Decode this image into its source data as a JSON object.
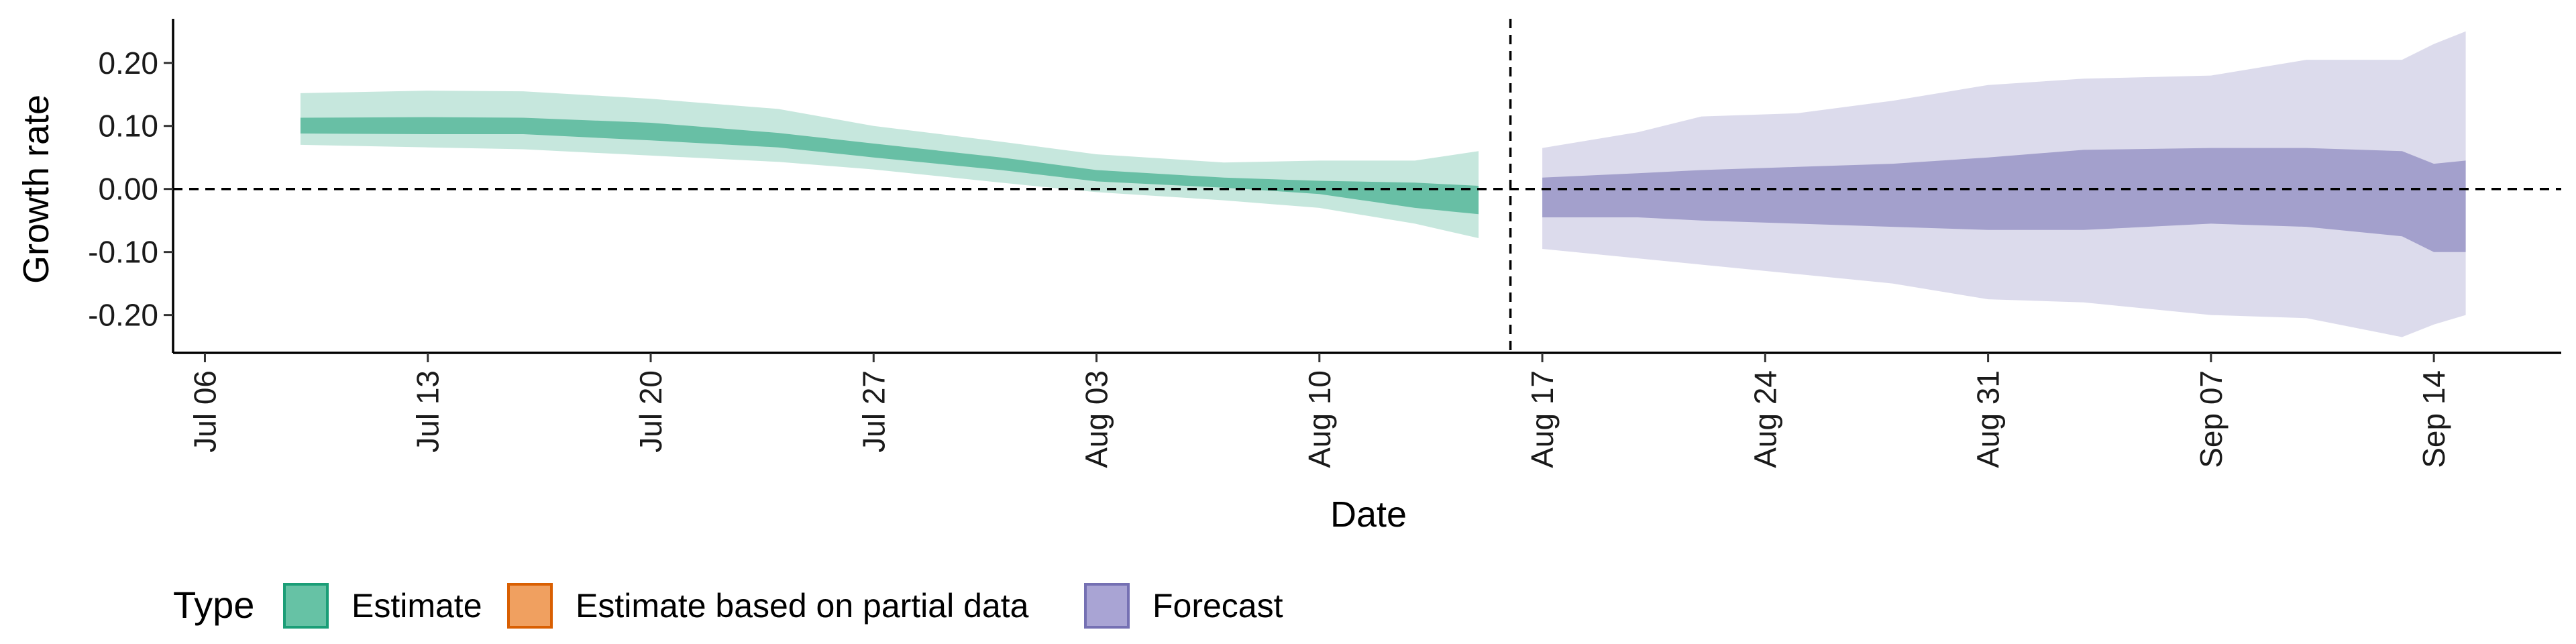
{
  "chart_data": {
    "type": "area",
    "xlabel": "Date",
    "ylabel": "Growth rate",
    "x_ticks": [
      "2020-07-06",
      "2020-07-13",
      "2020-07-20",
      "2020-07-27",
      "2020-08-03",
      "2020-08-10",
      "2020-08-17",
      "2020-08-24",
      "2020-08-31",
      "2020-09-07",
      "2020-09-14"
    ],
    "x_tick_labels": [
      "Jul 06",
      "Jul 13",
      "Jul 20",
      "Jul 27",
      "Aug 03",
      "Aug 10",
      "Aug 17",
      "Aug 24",
      "Aug 31",
      "Sep 07",
      "Sep 14"
    ],
    "xlim": [
      "2020-07-05",
      "2020-09-18"
    ],
    "y_ticks": [
      -0.2,
      -0.1,
      0.0,
      0.1,
      0.2
    ],
    "y_tick_labels": [
      "-0.20",
      "-0.10",
      "0.00",
      "0.10",
      "0.20"
    ],
    "ylim": [
      -0.26,
      0.27
    ],
    "hline": 0.0,
    "vline": "2020-08-16",
    "grid": false,
    "legend": {
      "title": "Type",
      "position": "bottom-left",
      "entries": [
        {
          "label": "Estimate",
          "fill": "#66c2a5",
          "stroke": "#1b9e77"
        },
        {
          "label": "Estimate based on partial data",
          "fill": "#f0a060",
          "stroke": "#d95f02"
        },
        {
          "label": "Forecast",
          "fill": "#a9a4d4",
          "stroke": "#7570b3"
        }
      ]
    },
    "series": [
      {
        "name": "Estimate",
        "color": "#1b9e77",
        "points": [
          {
            "x": "2020-07-09",
            "lo90": 0.07,
            "lo50": 0.088,
            "hi50": 0.113,
            "hi90": 0.152
          },
          {
            "x": "2020-07-13",
            "lo90": 0.066,
            "lo50": 0.087,
            "hi50": 0.114,
            "hi90": 0.156
          },
          {
            "x": "2020-07-16",
            "lo90": 0.063,
            "lo50": 0.087,
            "hi50": 0.113,
            "hi90": 0.155
          },
          {
            "x": "2020-07-20",
            "lo90": 0.053,
            "lo50": 0.077,
            "hi50": 0.105,
            "hi90": 0.143
          },
          {
            "x": "2020-07-24",
            "lo90": 0.043,
            "lo50": 0.066,
            "hi50": 0.089,
            "hi90": 0.127
          },
          {
            "x": "2020-07-27",
            "lo90": 0.031,
            "lo50": 0.05,
            "hi50": 0.072,
            "hi90": 0.1
          },
          {
            "x": "2020-07-31",
            "lo90": 0.01,
            "lo50": 0.03,
            "hi50": 0.05,
            "hi90": 0.075
          },
          {
            "x": "2020-08-03",
            "lo90": -0.005,
            "lo50": 0.012,
            "hi50": 0.03,
            "hi90": 0.055
          },
          {
            "x": "2020-08-07",
            "lo90": -0.018,
            "lo50": 0.002,
            "hi50": 0.018,
            "hi90": 0.042
          },
          {
            "x": "2020-08-10",
            "lo90": -0.03,
            "lo50": -0.008,
            "hi50": 0.013,
            "hi90": 0.045
          },
          {
            "x": "2020-08-13",
            "lo90": -0.055,
            "lo50": -0.03,
            "hi50": 0.01,
            "hi90": 0.045
          },
          {
            "x": "2020-08-15",
            "lo90": -0.078,
            "lo50": -0.04,
            "hi50": 0.005,
            "hi90": 0.06
          }
        ]
      },
      {
        "name": "Forecast",
        "color": "#7570b3",
        "points": [
          {
            "x": "2020-08-17",
            "lo90": -0.095,
            "lo50": -0.045,
            "hi50": 0.018,
            "hi90": 0.065
          },
          {
            "x": "2020-08-20",
            "lo90": -0.11,
            "lo50": -0.045,
            "hi50": 0.025,
            "hi90": 0.09
          },
          {
            "x": "2020-08-22",
            "lo90": -0.12,
            "lo50": -0.05,
            "hi50": 0.03,
            "hi90": 0.115
          },
          {
            "x": "2020-08-25",
            "lo90": -0.135,
            "lo50": -0.055,
            "hi50": 0.035,
            "hi90": 0.12
          },
          {
            "x": "2020-08-28",
            "lo90": -0.15,
            "lo50": -0.06,
            "hi50": 0.04,
            "hi90": 0.14
          },
          {
            "x": "2020-08-31",
            "lo90": -0.175,
            "lo50": -0.065,
            "hi50": 0.05,
            "hi90": 0.165
          },
          {
            "x": "2020-09-03",
            "lo90": -0.18,
            "lo50": -0.065,
            "hi50": 0.062,
            "hi90": 0.175
          },
          {
            "x": "2020-09-07",
            "lo90": -0.2,
            "lo50": -0.055,
            "hi50": 0.065,
            "hi90": 0.18
          },
          {
            "x": "2020-09-10",
            "lo90": -0.205,
            "lo50": -0.06,
            "hi50": 0.065,
            "hi90": 0.205
          },
          {
            "x": "2020-09-13",
            "lo90": -0.235,
            "lo50": -0.075,
            "hi50": 0.06,
            "hi90": 0.205
          },
          {
            "x": "2020-09-14",
            "lo90": -0.215,
            "lo50": -0.1,
            "hi50": 0.04,
            "hi90": 0.23
          },
          {
            "x": "2020-09-15",
            "lo90": -0.2,
            "lo50": -0.1,
            "hi50": 0.045,
            "hi90": 0.25
          }
        ]
      }
    ]
  }
}
